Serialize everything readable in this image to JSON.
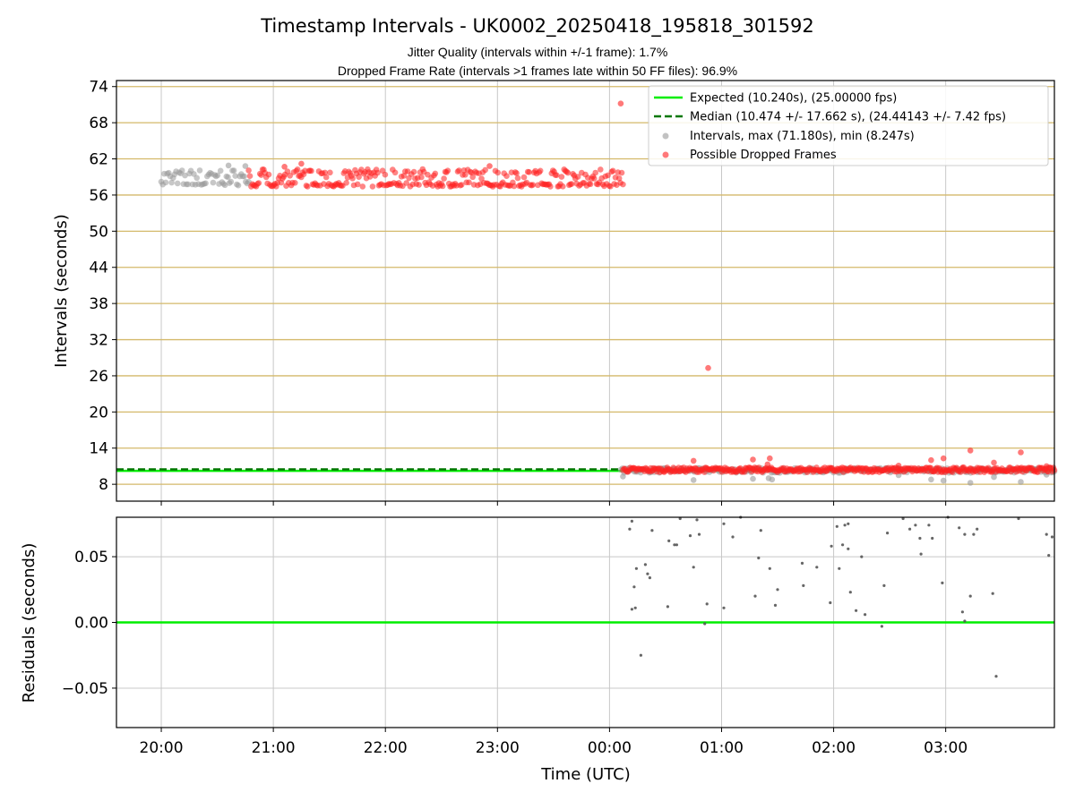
{
  "title": "Timestamp Intervals - UK0002_20250418_195818_301592",
  "subtitle_1": "Jitter Quality (intervals within +/-1 frame): 1.7%",
  "subtitle_2": "Dropped Frame Rate (intervals >1 frames late within 50 FF files): 96.9%",
  "colors": {
    "expected": "#00ee00",
    "median": "#007700",
    "interval": "#999999",
    "dropped": "#ff2020",
    "grid_top": "#d4b96a",
    "grid": "#c8c8c8",
    "residual": "#555555"
  },
  "chart_data": [
    {
      "type": "scatter",
      "ylabel": "Intervals (seconds)",
      "xlabel": "",
      "ylim": [
        5.2,
        75
      ],
      "xlim_hours": [
        19.6,
        27.97
      ],
      "y_ticks": [
        8,
        14,
        20,
        26,
        32,
        38,
        44,
        50,
        56,
        62,
        68,
        74
      ],
      "y_tick_labels": [
        "8",
        "14",
        "20",
        "26",
        "32",
        "38",
        "44",
        "50",
        "56",
        "62",
        "68",
        "74"
      ],
      "x_ticks_hours": [
        20,
        21,
        22,
        23,
        24,
        25,
        26,
        27
      ],
      "x_tick_labels": [
        "20:00",
        "21:00",
        "22:00",
        "23:00",
        "00:00",
        "01:00",
        "02:00",
        "03:00"
      ],
      "horizontal_grid": true,
      "vertical_grid": true,
      "legend_position": "top-right",
      "legend": {
        "expected": "Expected (10.240s), (25.00000 fps)",
        "median": "Median (10.474 +/- 17.662 s), (24.44143 +/- 7.42 fps)",
        "intervals": "Intervals, max (71.180s), min (8.247s)",
        "dropped": "Possible Dropped Frames"
      },
      "expected_value": 10.24,
      "median_value": 10.474,
      "median_until_hour": 24.1,
      "series": [
        {
          "name": "Intervals, max (71.180s), min (8.247s)",
          "segments": [
            {
              "x_start": 20.0,
              "x_end": 20.78,
              "low": 57.6,
              "high": 60.2,
              "count": 60
            },
            {
              "x_start": 24.1,
              "x_end": 27.97,
              "low": 9.9,
              "high": 10.7,
              "count": 260
            }
          ],
          "points": [
            {
              "x": 24.12,
              "y": 9.3
            },
            {
              "x": 24.75,
              "y": 8.7
            },
            {
              "x": 25.28,
              "y": 8.9
            },
            {
              "x": 25.42,
              "y": 9.0
            },
            {
              "x": 25.45,
              "y": 8.8
            },
            {
              "x": 26.58,
              "y": 9.5
            },
            {
              "x": 26.87,
              "y": 8.8
            },
            {
              "x": 26.98,
              "y": 8.6
            },
            {
              "x": 27.22,
              "y": 8.25
            },
            {
              "x": 27.43,
              "y": 9.2
            },
            {
              "x": 27.67,
              "y": 8.4
            },
            {
              "x": 27.9,
              "y": 9.6
            },
            {
              "x": 20.6,
              "y": 60.9
            },
            {
              "x": 20.75,
              "y": 60.8
            }
          ]
        },
        {
          "name": "Possible Dropped Frames",
          "segments": [
            {
              "x_start": 20.78,
              "x_end": 24.12,
              "low": 57.4,
              "high": 60.3,
              "count": 300
            },
            {
              "x_start": 24.12,
              "x_end": 27.97,
              "low": 10.0,
              "high": 10.8,
              "count": 420
            }
          ],
          "points": [
            {
              "x": 24.1,
              "y": 71.18
            },
            {
              "x": 24.88,
              "y": 27.3
            },
            {
              "x": 24.75,
              "y": 11.9
            },
            {
              "x": 25.28,
              "y": 12.1
            },
            {
              "x": 25.43,
              "y": 12.3
            },
            {
              "x": 25.41,
              "y": 11.3
            },
            {
              "x": 26.58,
              "y": 11.1
            },
            {
              "x": 26.87,
              "y": 12.0
            },
            {
              "x": 26.98,
              "y": 12.3
            },
            {
              "x": 27.22,
              "y": 13.6
            },
            {
              "x": 27.43,
              "y": 11.6
            },
            {
              "x": 27.67,
              "y": 13.3
            },
            {
              "x": 27.9,
              "y": 11.0
            },
            {
              "x": 21.25,
              "y": 61.2
            },
            {
              "x": 21.1,
              "y": 60.7
            },
            {
              "x": 22.93,
              "y": 60.8
            }
          ]
        }
      ]
    },
    {
      "type": "scatter",
      "ylabel": "Residuals (seconds)",
      "xlabel": "Time (UTC)",
      "ylim": [
        -0.08,
        0.08
      ],
      "y_ticks": [
        -0.05,
        0.0,
        0.05
      ],
      "y_tick_labels": [
        "−0.05",
        "0.00",
        "0.05"
      ],
      "x_ticks_hours": [
        20,
        21,
        22,
        23,
        24,
        25,
        26,
        27
      ],
      "x_tick_labels": [
        "20:00",
        "21:00",
        "22:00",
        "23:00",
        "00:00",
        "01:00",
        "02:00",
        "03:00"
      ],
      "zero_line": 0.0,
      "horizontal_grid": true,
      "vertical_grid": true,
      "series": [
        {
          "name": "",
          "points": [
            {
              "x": 24.18,
              "y": 0.071
            },
            {
              "x": 24.2,
              "y": 0.077
            },
            {
              "x": 24.2,
              "y": 0.01
            },
            {
              "x": 24.22,
              "y": 0.027
            },
            {
              "x": 24.23,
              "y": 0.011
            },
            {
              "x": 24.24,
              "y": 0.041
            },
            {
              "x": 24.28,
              "y": -0.025
            },
            {
              "x": 24.32,
              "y": 0.044
            },
            {
              "x": 24.34,
              "y": 0.037
            },
            {
              "x": 24.36,
              "y": 0.034
            },
            {
              "x": 24.38,
              "y": 0.07
            },
            {
              "x": 24.52,
              "y": 0.012
            },
            {
              "x": 24.53,
              "y": 0.062
            },
            {
              "x": 24.58,
              "y": 0.059
            },
            {
              "x": 24.6,
              "y": 0.059
            },
            {
              "x": 24.63,
              "y": 0.079
            },
            {
              "x": 24.72,
              "y": 0.066
            },
            {
              "x": 24.75,
              "y": 0.042
            },
            {
              "x": 24.78,
              "y": 0.078
            },
            {
              "x": 24.8,
              "y": 0.067
            },
            {
              "x": 24.85,
              "y": -0.001
            },
            {
              "x": 24.87,
              "y": 0.014
            },
            {
              "x": 25.02,
              "y": 0.075
            },
            {
              "x": 25.02,
              "y": 0.011
            },
            {
              "x": 25.1,
              "y": 0.065
            },
            {
              "x": 25.17,
              "y": 0.08
            },
            {
              "x": 25.3,
              "y": 0.02
            },
            {
              "x": 25.33,
              "y": 0.049
            },
            {
              "x": 25.35,
              "y": 0.07
            },
            {
              "x": 25.43,
              "y": 0.041
            },
            {
              "x": 25.48,
              "y": 0.013
            },
            {
              "x": 25.5,
              "y": 0.025
            },
            {
              "x": 25.72,
              "y": 0.045
            },
            {
              "x": 25.73,
              "y": 0.028
            },
            {
              "x": 25.85,
              "y": 0.042
            },
            {
              "x": 25.97,
              "y": 0.015
            },
            {
              "x": 25.98,
              "y": 0.058
            },
            {
              "x": 26.03,
              "y": 0.073
            },
            {
              "x": 26.05,
              "y": 0.041
            },
            {
              "x": 26.08,
              "y": 0.059
            },
            {
              "x": 26.1,
              "y": 0.074
            },
            {
              "x": 26.13,
              "y": 0.075
            },
            {
              "x": 26.13,
              "y": 0.056
            },
            {
              "x": 26.15,
              "y": 0.023
            },
            {
              "x": 26.2,
              "y": 0.009
            },
            {
              "x": 26.25,
              "y": 0.05
            },
            {
              "x": 26.28,
              "y": 0.006
            },
            {
              "x": 26.43,
              "y": -0.003
            },
            {
              "x": 26.45,
              "y": 0.028
            },
            {
              "x": 26.48,
              "y": 0.068
            },
            {
              "x": 26.62,
              "y": 0.079
            },
            {
              "x": 26.68,
              "y": 0.071
            },
            {
              "x": 26.73,
              "y": 0.074
            },
            {
              "x": 26.77,
              "y": 0.064
            },
            {
              "x": 26.78,
              "y": 0.052
            },
            {
              "x": 26.85,
              "y": 0.074
            },
            {
              "x": 26.88,
              "y": 0.064
            },
            {
              "x": 26.97,
              "y": 0.03
            },
            {
              "x": 27.02,
              "y": 0.08
            },
            {
              "x": 27.12,
              "y": 0.072
            },
            {
              "x": 27.15,
              "y": 0.008
            },
            {
              "x": 27.17,
              "y": 0.001
            },
            {
              "x": 27.17,
              "y": 0.067
            },
            {
              "x": 27.22,
              "y": 0.02
            },
            {
              "x": 27.25,
              "y": 0.067
            },
            {
              "x": 27.28,
              "y": 0.071
            },
            {
              "x": 27.42,
              "y": 0.022
            },
            {
              "x": 27.45,
              "y": -0.041
            },
            {
              "x": 27.65,
              "y": 0.079
            },
            {
              "x": 27.9,
              "y": 0.067
            },
            {
              "x": 27.92,
              "y": 0.051
            },
            {
              "x": 27.95,
              "y": 0.065
            }
          ]
        }
      ]
    }
  ]
}
